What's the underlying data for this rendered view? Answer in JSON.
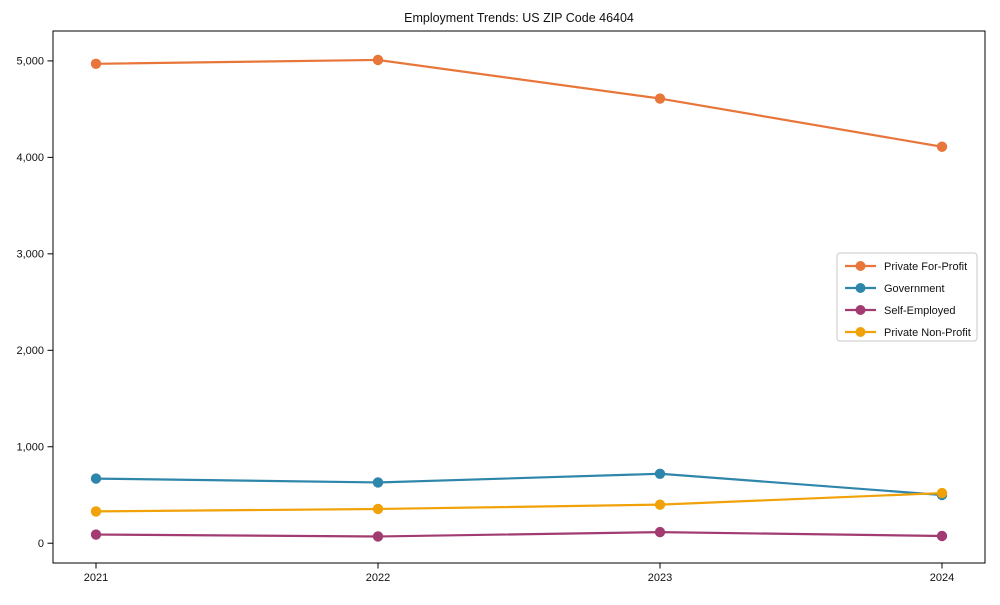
{
  "chart_data": {
    "type": "line",
    "title": "Employment Trends: US ZIP Code 46404",
    "xlabel": "",
    "ylabel": "",
    "x": [
      2021,
      2022,
      2023,
      2024
    ],
    "x_tick_labels": [
      "2021",
      "2022",
      "2023",
      "2024"
    ],
    "y_ticks": [
      {
        "value": 0,
        "label": "0"
      },
      {
        "value": 1000,
        "label": "1,000"
      },
      {
        "value": 2000,
        "label": "2,000"
      },
      {
        "value": 3000,
        "label": "3,000"
      },
      {
        "value": 4000,
        "label": "4,000"
      },
      {
        "value": 5000,
        "label": "5,000"
      }
    ],
    "ylim": [
      -205,
      5310
    ],
    "grid": false,
    "marker": "circle",
    "legend_position": "center right",
    "series": [
      {
        "name": "Private For-Profit",
        "color": "#E8763B",
        "values": [
          4970,
          5010,
          4610,
          4110
        ]
      },
      {
        "name": "Government",
        "color": "#2E86AB",
        "values": [
          670,
          630,
          720,
          500
        ]
      },
      {
        "name": "Self-Employed",
        "color": "#A23B72",
        "values": [
          90,
          70,
          115,
          75
        ]
      },
      {
        "name": "Private Non-Profit",
        "color": "#F1A208",
        "values": [
          330,
          355,
          400,
          520
        ]
      }
    ]
  }
}
